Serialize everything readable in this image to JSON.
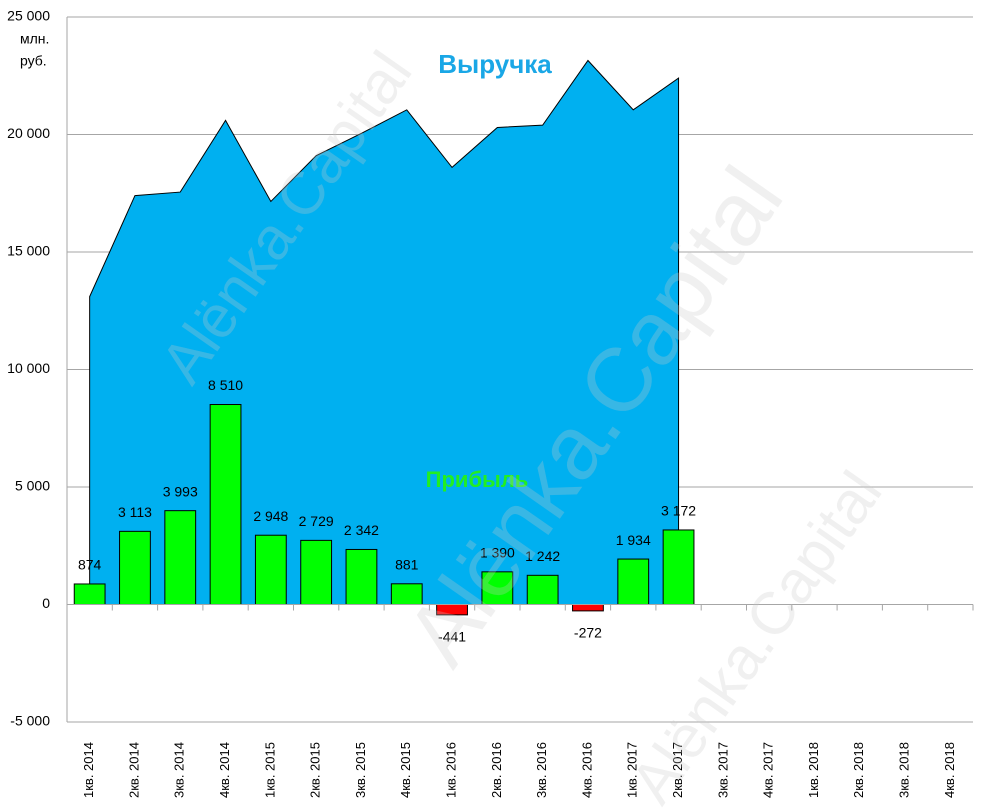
{
  "chart_data": {
    "type": "combo",
    "categories": [
      "1кв. 2014",
      "2кв. 2014",
      "3кв. 2014",
      "4кв. 2014",
      "1кв. 2015",
      "2кв. 2015",
      "3кв. 2015",
      "4кв. 2015",
      "1кв. 2016",
      "2кв. 2016",
      "3кв. 2016",
      "4кв. 2016",
      "1кв. 2017",
      "2кв. 2017",
      "3кв. 2017",
      "4кв. 2017",
      "1кв. 2018",
      "2кв. 2018",
      "3кв. 2018",
      "4кв. 2018"
    ],
    "series": [
      {
        "name": "Выручка",
        "type": "area",
        "color": "#00b0f0",
        "values": [
          13100,
          17400,
          17550,
          20600,
          17150,
          19100,
          20050,
          21050,
          18600,
          20300,
          20400,
          23150,
          21050,
          22400,
          null,
          null,
          null,
          null,
          null,
          null
        ]
      },
      {
        "name": "Прибыль",
        "type": "bar",
        "color": "#00ff00",
        "negative_color": "#ff0000",
        "values": [
          874,
          3113,
          3993,
          8510,
          2948,
          2729,
          2342,
          881,
          -441,
          1390,
          1242,
          -272,
          1934,
          3172,
          null,
          null,
          null,
          null,
          null,
          null
        ],
        "value_labels": [
          "874",
          "3 113",
          "3 993",
          "8 510",
          "2 948",
          "2 729",
          "2 342",
          "881",
          "-441",
          "1 390",
          "1 242",
          "-272",
          "1 934",
          "3 172",
          null,
          null,
          null,
          null,
          null,
          null
        ]
      }
    ],
    "ylim": [
      -5000,
      25000
    ],
    "yticks": [
      {
        "value": -5000,
        "label": "-5 000"
      },
      0,
      {
        "value": 5000,
        "label": "5 000"
      },
      {
        "value": 10000,
        "label": "10 000"
      },
      {
        "value": 15000,
        "label": "15 000"
      },
      {
        "value": 20000,
        "label": "20 000"
      },
      {
        "value": 25000,
        "label": "25 000"
      }
    ],
    "ylabel": [
      "млн.",
      "руб."
    ],
    "grid": true,
    "watermarks": [
      "ALËNKA.CAPITAL",
      "Alёnka.Capital"
    ]
  }
}
